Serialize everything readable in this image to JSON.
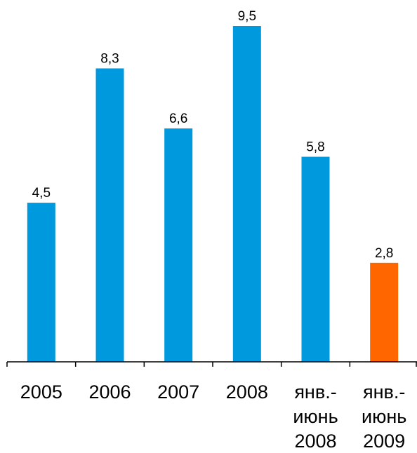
{
  "chart_data": {
    "type": "bar",
    "categories": [
      [
        "2005"
      ],
      [
        "2006"
      ],
      [
        "2007"
      ],
      [
        "2008"
      ],
      [
        "янв.-",
        "июнь",
        "2008"
      ],
      [
        "янв.-",
        "июнь",
        "2009"
      ]
    ],
    "values": [
      4.5,
      8.3,
      6.6,
      9.5,
      5.8,
      2.8
    ],
    "value_labels": [
      "4,5",
      "8,3",
      "6,6",
      "9,5",
      "5,8",
      "2,8"
    ],
    "bar_colors": [
      "#0099dd",
      "#0099dd",
      "#0099dd",
      "#0099dd",
      "#0099dd",
      "#ff6600"
    ],
    "ylim": [
      0,
      9.5
    ],
    "grid": false,
    "legend": "none"
  }
}
